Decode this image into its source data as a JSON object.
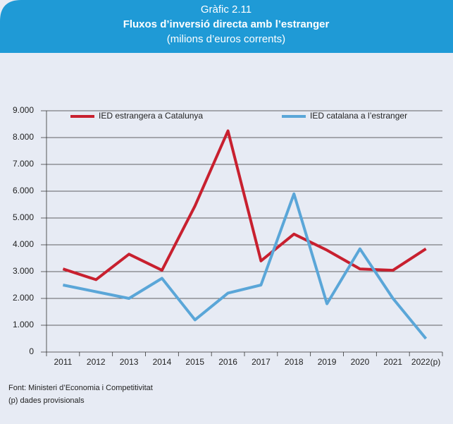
{
  "chart_data": {
    "type": "line",
    "label": "Gràfic 2.11",
    "title": "Fluxos d’inversió directa amb l’estranger",
    "subtitle": "(milions d’euros corrents)",
    "categories": [
      "2011",
      "2012",
      "2013",
      "2014",
      "2015",
      "2016",
      "2017",
      "2018",
      "2019",
      "2020",
      "2021",
      "2022(p)"
    ],
    "series": [
      {
        "name": "IED estrangera a Catalunya",
        "color": "#c8202f",
        "values": [
          3100,
          2700,
          3650,
          3050,
          5450,
          8250,
          3400,
          4400,
          3800,
          3100,
          3050,
          3850
        ]
      },
      {
        "name": "IED catalana a l’estranger",
        "color": "#5aa6d8",
        "values": [
          2500,
          2250,
          2000,
          2750,
          1200,
          2200,
          2500,
          5900,
          1800,
          3850,
          2000,
          500
        ]
      }
    ],
    "ylim": [
      0,
      9000
    ],
    "yticks": [
      0,
      {
        "value": 1000,
        "label": "1.000"
      },
      {
        "value": 2000,
        "label": "2.000"
      },
      {
        "value": 3000,
        "label": "3.000"
      },
      {
        "value": 4000,
        "label": "4.000"
      },
      {
        "value": 5000,
        "label": "5.000"
      },
      {
        "value": 6000,
        "label": "6.000"
      },
      {
        "value": 7000,
        "label": "7.000"
      },
      {
        "value": 8000,
        "label": "8.000"
      },
      {
        "value": 9000,
        "label": "9.000"
      }
    ],
    "grid": true,
    "legend": "top",
    "source": "Font: Ministeri d’Economia i Competitivitat",
    "note": "(p) dades provisionals"
  }
}
